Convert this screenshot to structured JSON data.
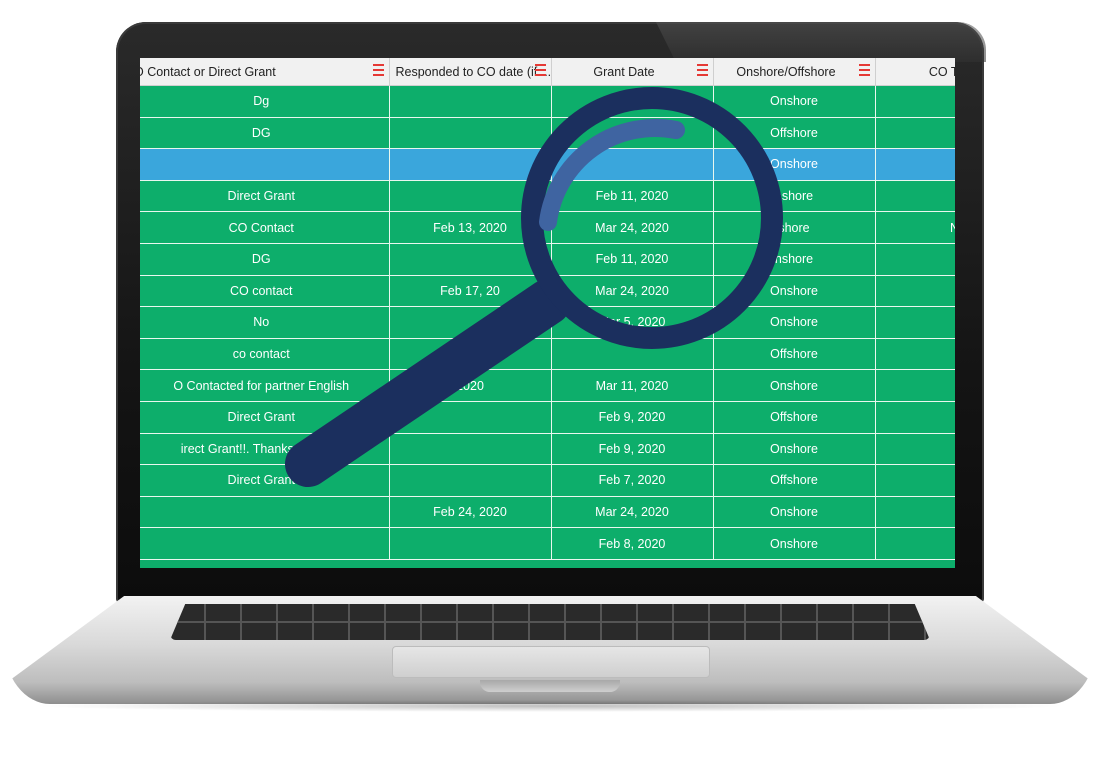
{
  "columns": [
    {
      "label": "O Contact or Direct Grant"
    },
    {
      "label": "Responded to CO date (if ..."
    },
    {
      "label": "Grant Date"
    },
    {
      "label": "Onshore/Offshore"
    },
    {
      "label": "CO Te"
    }
  ],
  "rows": [
    {
      "contact": "Dg",
      "responded": "",
      "grant": "",
      "shore": "Onshore",
      "co": ""
    },
    {
      "contact": "DG",
      "responded": "",
      "grant": "",
      "shore": "Offshore",
      "co": ""
    },
    {
      "contact": "",
      "responded": "",
      "grant": "",
      "shore": "Onshore",
      "co": "",
      "selected": true
    },
    {
      "contact": "Direct Grant",
      "responded": "",
      "grant": "Feb 11, 2020",
      "shore": "nshore",
      "co": ""
    },
    {
      "contact": "CO Contact",
      "responded": "Feb 13, 2020",
      "grant": "Mar 24, 2020",
      "shore": "shore",
      "co": "N"
    },
    {
      "contact": "DG",
      "responded": "",
      "grant": "Feb 11, 2020",
      "shore": "nshore",
      "co": ""
    },
    {
      "contact": "CO contact",
      "responded": "Feb 17, 20",
      "grant": "Mar 24, 2020",
      "shore": "Onshore",
      "co": ""
    },
    {
      "contact": "No",
      "responded": "",
      "grant": "Mar 5, 2020",
      "shore": "Onshore",
      "co": ""
    },
    {
      "contact": "co contact",
      "responded": "",
      "grant": "",
      "shore": "Offshore",
      "co": ""
    },
    {
      "contact": "O Contacted for partner English",
      "responded": "2020",
      "grant": "Mar 11, 2020",
      "shore": "Onshore",
      "co": ""
    },
    {
      "contact": "Direct Grant",
      "responded": "",
      "grant": "Feb 9, 2020",
      "shore": "Offshore",
      "co": ""
    },
    {
      "contact": "irect Grant!!. Thanks to God!!",
      "responded": "",
      "grant": "Feb 9, 2020",
      "shore": "Onshore",
      "co": ""
    },
    {
      "contact": "Direct Grant",
      "responded": "",
      "grant": "Feb 7, 2020",
      "shore": "Offshore",
      "co": ""
    },
    {
      "contact": "",
      "responded": "Feb 24, 2020",
      "grant": "Mar 24, 2020",
      "shore": "Onshore",
      "co": ""
    },
    {
      "contact": "",
      "responded": "",
      "grant": "Feb 8, 2020",
      "shore": "Onshore",
      "co": ""
    }
  ],
  "colors": {
    "row_green": "#0dae6b",
    "row_selected": "#3aa6dc",
    "header_bg": "#f1f1f1",
    "menu_icon": "#e53935",
    "magnifier": "#1b2f5e"
  },
  "icons": {
    "column_menu": "hamburger-menu-icon",
    "overlay": "magnifying-glass-icon"
  }
}
